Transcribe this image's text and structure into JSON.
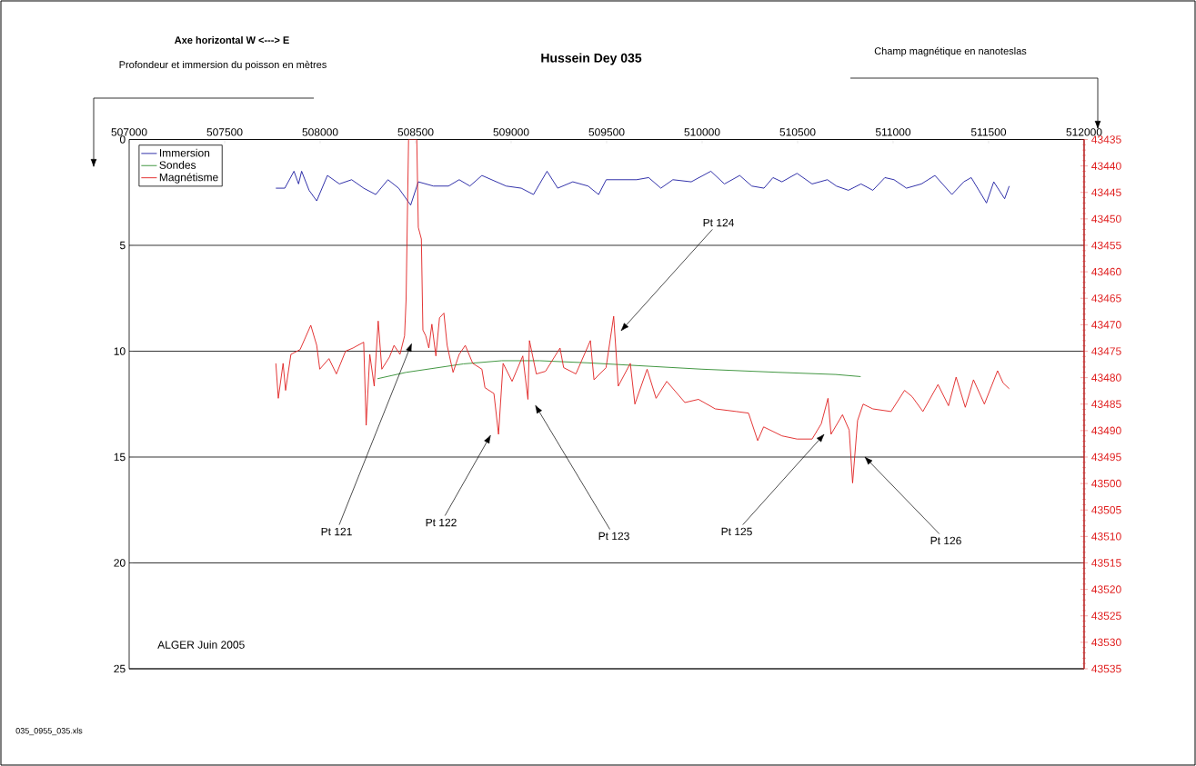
{
  "chart_data": {
    "type": "line",
    "title": "Hussein Dey 035",
    "xlim": [
      507000,
      512000
    ],
    "xticks": [
      507000,
      507500,
      508000,
      508500,
      509000,
      509500,
      510000,
      510500,
      511000,
      511500,
      512000
    ],
    "ylim": [
      25,
      0
    ],
    "yticks": [
      0,
      5,
      10,
      15,
      20,
      25
    ],
    "y2lim": [
      43535,
      43435
    ],
    "y2ticks": [
      43435,
      43440,
      43445,
      43450,
      43455,
      43460,
      43465,
      43470,
      43475,
      43480,
      43485,
      43490,
      43495,
      43500,
      43505,
      43510,
      43515,
      43520,
      43525,
      43530,
      43535
    ],
    "grid": "y",
    "legend": "top left",
    "series": [
      {
        "name": "Immersion",
        "color": "#1c1ca0",
        "x": [
          507768,
          507815,
          507863,
          507887,
          507903,
          507942,
          507982,
          508038,
          508101,
          508165,
          508228,
          508291,
          508355,
          508411,
          508474,
          508514,
          508593,
          508672,
          508728,
          508784,
          508847,
          508974,
          509053,
          509117,
          509188,
          509244,
          509323,
          509403,
          509458,
          509498,
          509593,
          509657,
          509720,
          509784,
          509847,
          509943,
          510046,
          510117,
          510197,
          510260,
          510324,
          510371,
          510418,
          510497,
          510576,
          510656,
          510703,
          510766,
          510832,
          510894,
          510957,
          511005,
          511070,
          511148,
          511219,
          511308,
          511370,
          511409,
          511489,
          511527,
          511584,
          511608
        ],
        "values": [
          2.3,
          2.3,
          1.5,
          2.1,
          1.5,
          2.4,
          2.9,
          1.7,
          2.1,
          1.9,
          2.3,
          2.6,
          1.9,
          2.3,
          3.1,
          2.0,
          2.2,
          2.2,
          1.9,
          2.2,
          1.7,
          2.2,
          2.3,
          2.6,
          1.5,
          2.3,
          2.0,
          2.2,
          2.6,
          1.9,
          1.9,
          1.9,
          1.8,
          2.3,
          1.9,
          2.0,
          1.5,
          2.1,
          1.7,
          2.2,
          2.3,
          1.8,
          2.0,
          1.6,
          2.1,
          1.9,
          2.2,
          2.4,
          2.1,
          2.4,
          1.8,
          1.9,
          2.3,
          2.1,
          1.7,
          2.6,
          2.0,
          1.8,
          3.0,
          2.0,
          2.8,
          2.2
        ]
      },
      {
        "name": "Sondes",
        "color": "#2e8b2e",
        "x": [
          508300,
          508450,
          508600,
          508750,
          508950,
          509150,
          509400,
          509600,
          510000,
          510400,
          510700,
          510830
        ],
        "values": [
          11.3,
          11.0,
          10.8,
          10.6,
          10.45,
          10.45,
          10.55,
          10.65,
          10.85,
          11.0,
          11.1,
          11.2
        ]
      },
      {
        "name": "Magnétisme",
        "color": "#e02020",
        "axis": "y2",
        "x": [
          507768,
          507781,
          507806,
          507819,
          507847,
          507895,
          507951,
          507982,
          507998,
          508046,
          508085,
          508133,
          508172,
          508228,
          508241,
          508260,
          508283,
          508304,
          508323,
          508363,
          508387,
          508418,
          508442,
          508450,
          508463,
          508506,
          508514,
          508530,
          508538,
          508553,
          508569,
          508585,
          508606,
          508625,
          508648,
          508665,
          508696,
          508728,
          508760,
          508799,
          508847,
          508863,
          508910,
          508934,
          508958,
          509005,
          509061,
          509088,
          509096,
          509132,
          509180,
          509256,
          509275,
          509339,
          509415,
          509434,
          509497,
          509537,
          509561,
          509624,
          509648,
          509712,
          509759,
          509815,
          509910,
          509981,
          510069,
          510180,
          510243,
          510291,
          510322,
          510418,
          510497,
          510576,
          510624,
          510659,
          510675,
          510735,
          510770,
          510788,
          510814,
          510843,
          510894,
          510989,
          511060,
          511100,
          511156,
          511235,
          511290,
          511330,
          511378,
          511421,
          511478,
          511547,
          511576,
          511608
        ],
        "values": [
          43477.3,
          43483.9,
          43477.3,
          43482.4,
          43475.6,
          43474.7,
          43470.1,
          43473.9,
          43478.4,
          43476.4,
          43479.3,
          43475.0,
          43474.4,
          43473.3,
          43489.0,
          43475.6,
          43481.6,
          43469.3,
          43478.4,
          43476.1,
          43473.9,
          43475.6,
          43472.1,
          43465.3,
          43435,
          43435,
          43451.6,
          43453.8,
          43471.0,
          43472.1,
          43474.4,
          43469.9,
          43475.9,
          43468.7,
          43467.8,
          43473.9,
          43479.0,
          43475.6,
          43473.9,
          43477.3,
          43478.4,
          43481.9,
          43483.0,
          43490.7,
          43477.3,
          43480.7,
          43475.9,
          43484.1,
          43473.0,
          43479.3,
          43478.8,
          43474.4,
          43478.1,
          43479.3,
          43473.0,
          43480.4,
          43478.1,
          43468.4,
          43481.6,
          43477.3,
          43485.0,
          43478.4,
          43483.9,
          43480.7,
          43484.7,
          43484.1,
          43485.9,
          43486.4,
          43486.7,
          43491.9,
          43489.3,
          43491.0,
          43491.6,
          43491.6,
          43488.7,
          43483.9,
          43490.7,
          43487.0,
          43489.9,
          43499.9,
          43488.1,
          43485.0,
          43485.9,
          43486.4,
          43482.4,
          43483.6,
          43486.4,
          43481.3,
          43485.3,
          43479.9,
          43485.6,
          43480.4,
          43485.0,
          43478.7,
          43481.0,
          43482.1
        ]
      }
    ],
    "annotations": [
      "Axe horizontal W <---> E",
      "Profondeur et immersion du poisson en mètres",
      "Champ magnétique en nanoteslas",
      "Pt 121",
      "Pt 122",
      "Pt 123",
      "Pt 124",
      "Pt 125",
      "Pt 126",
      "ALGER Juin 2005",
      "035_0955_035.xls"
    ]
  }
}
